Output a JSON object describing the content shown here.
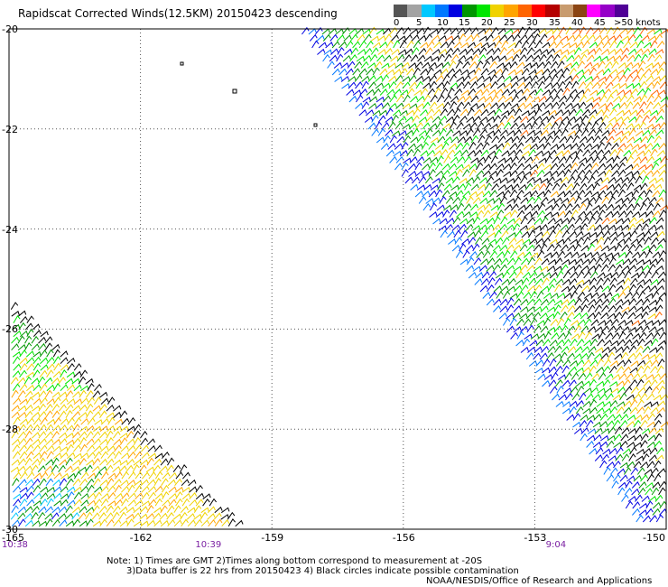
{
  "title": "Rapidscat Corrected Winds(12.5KM) 20150423 descending",
  "legend": {
    "colors": [
      "#555555",
      "#a3a3a3",
      "#00c8ff",
      "#0078ff",
      "#0000e1",
      "#009600",
      "#00e600",
      "#f0d200",
      "#ffa500",
      "#ff6400",
      "#ff0000",
      "#b40000",
      "#c89b6e",
      "#8b4513",
      "#ff00ff",
      "#9600c8",
      "#500096"
    ],
    "labels": [
      "0",
      "5",
      "10",
      "15",
      "20",
      "25",
      "30",
      "35",
      "40",
      "45",
      ">50 knots"
    ]
  },
  "chart_data": {
    "type": "wind-barb map",
    "lat_labels": [
      "-20",
      "-22",
      "-24",
      "-26",
      "-28",
      "-30"
    ],
    "lon_labels": [
      "-165",
      "-162",
      "-159",
      "-156",
      "-153",
      "-150"
    ],
    "xlim": [
      -165,
      -150
    ],
    "ylim": [
      -30,
      -20
    ],
    "grid": "dotted",
    "time_labels": [
      {
        "text": "10:38",
        "lon": -165
      },
      {
        "text": "10:39",
        "lon": -160.5
      },
      {
        "text": "9:04",
        "lon": -152.5
      }
    ],
    "swaths": [
      {
        "name": "east-swath",
        "edge_nw": [
          -158.4,
          -20
        ],
        "edge_sw": [
          -152.8,
          -26.3
        ],
        "edge_se": [
          -150,
          -30
        ]
      },
      {
        "name": "west-swath",
        "edge_n": [
          -165,
          -25.4
        ],
        "edge_se": [
          -159.7,
          -30
        ]
      }
    ]
  },
  "notes": {
    "line1": "Note: 1) Times are GMT 2)Times along bottom correspond to measurement at -20S",
    "line2": "3)Data buffer is 22 hrs from 20150423 4) Black circles indicate possible contamination",
    "credit": "NOAA/NESDIS/Office of Research and Applications"
  }
}
